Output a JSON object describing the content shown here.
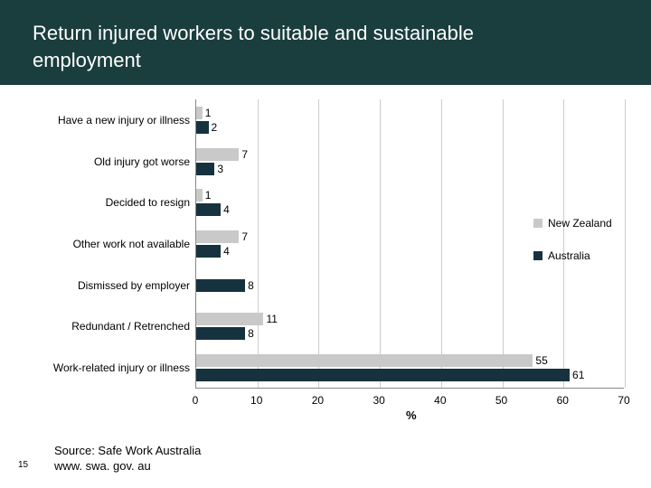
{
  "title": "Return injured workers to suitable and sustainable\nemployment",
  "page_number": "15",
  "source_line1": "Source: Safe Work Australia",
  "source_line2": "www. swa. gov. au",
  "chart": {
    "type": "bar",
    "orientation": "horizontal",
    "grouped": true,
    "x_title": "%",
    "xlim": [
      0,
      70
    ],
    "xticks": [
      0,
      10,
      20,
      30,
      40,
      50,
      60,
      70
    ],
    "grid_color": "#cccccc",
    "axis_color": "#888888",
    "background": "#ffffff",
    "label_fontsize": 12,
    "categories": [
      "Have a new injury or illness",
      "Old injury got worse",
      "Decided to resign",
      "Other work not available",
      "Dismissed by employer",
      "Redundant / Retrenched",
      "Work-related injury or illness"
    ],
    "series": [
      {
        "name": "New Zealand",
        "color": "#c9c9c9",
        "values": [
          1,
          7,
          1,
          7,
          null,
          11,
          55
        ]
      },
      {
        "name": "Australia",
        "color": "#17323f",
        "values": [
          2,
          3,
          4,
          4,
          8,
          8,
          61
        ]
      }
    ],
    "legend_position": "right"
  }
}
